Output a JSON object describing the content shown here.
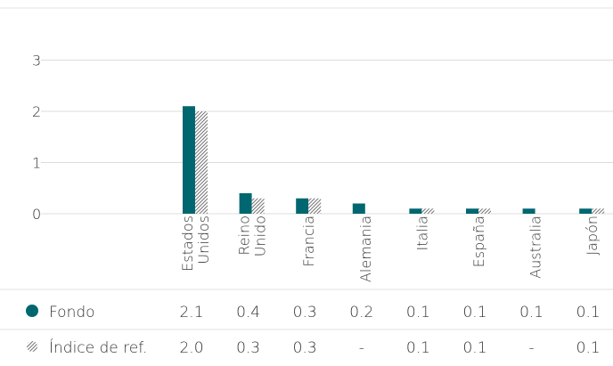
{
  "chart_data": {
    "type": "bar",
    "categories": [
      "Estados Unidos",
      "Reino Unido",
      "Francia",
      "Alemania",
      "Italia",
      "España",
      "Australia",
      "Japón"
    ],
    "category_label_lines": [
      [
        "Estados",
        "Unidos"
      ],
      [
        "Reino",
        "Unido"
      ],
      [
        "Francia"
      ],
      [
        "Alemania"
      ],
      [
        "Italia"
      ],
      [
        "España"
      ],
      [
        "Australia"
      ],
      [
        "Japón"
      ]
    ],
    "series": [
      {
        "name": "Fondo",
        "values": [
          2.1,
          0.4,
          0.3,
          0.2,
          0.1,
          0.1,
          0.1,
          0.1
        ],
        "display": [
          "2.1",
          "0.4",
          "0.3",
          "0.2",
          "0.1",
          "0.1",
          "0.1",
          "0.1"
        ],
        "color": "#006770",
        "marker": "solid-circle"
      },
      {
        "name": "Índice de ref.",
        "values": [
          2.0,
          0.3,
          0.3,
          null,
          0.1,
          0.1,
          null,
          0.1
        ],
        "display": [
          "2.0",
          "0.3",
          "0.3",
          "-",
          "0.1",
          "0.1",
          "-",
          "0.1"
        ],
        "color": "#8c8c8c",
        "marker": "hatched-circle"
      }
    ],
    "y_ticks": [
      "0",
      "1",
      "2",
      "3"
    ],
    "ylim": [
      0,
      3
    ],
    "grid": true,
    "legend": "table-below"
  }
}
